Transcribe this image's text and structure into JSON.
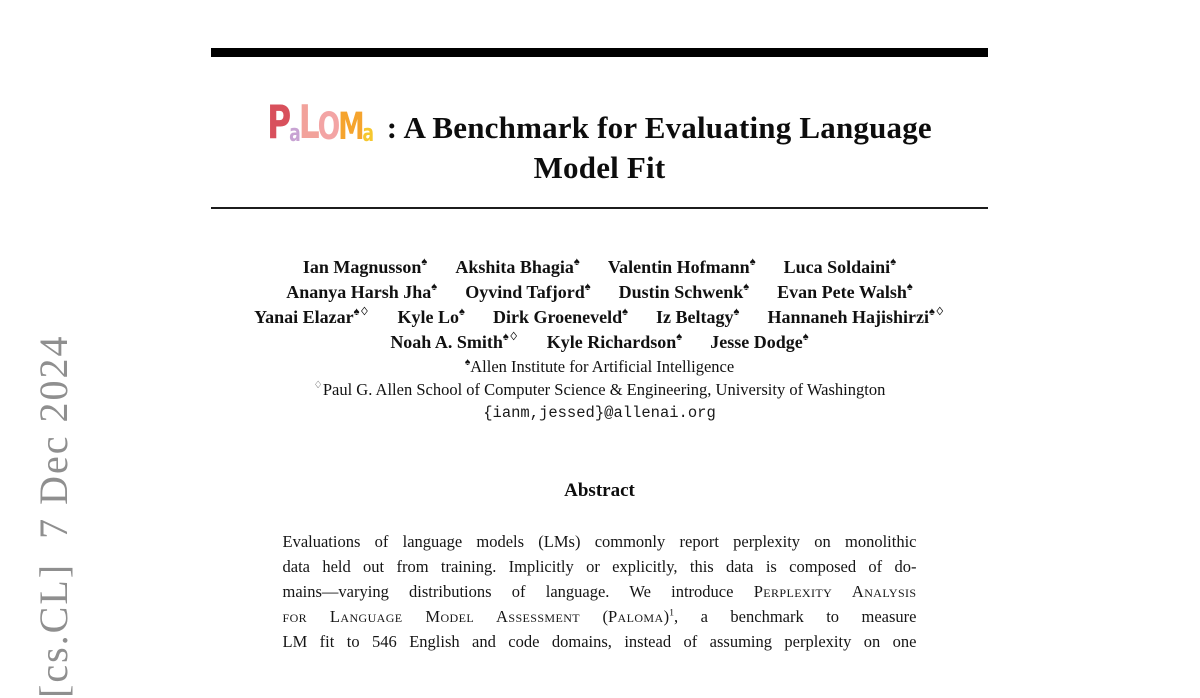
{
  "page": {
    "arxiv_banner": "[cs.CL]  7 Dec 2024",
    "title": {
      "logo_letters": [
        {
          "ch": "P",
          "color": "#d8505c",
          "size": "large"
        },
        {
          "ch": "a",
          "color": "#c8a3d3",
          "size": "small"
        },
        {
          "ch": "L",
          "color": "#f2a29b",
          "size": "large"
        },
        {
          "ch": "O",
          "color": "#f3a4a4",
          "size": "mid"
        },
        {
          "ch": "M",
          "color": "#f5a42e",
          "size": "mid"
        },
        {
          "ch": "a",
          "color": "#f6c72e",
          "size": "small"
        }
      ],
      "line1": ": A Benchmark for Evaluating Language",
      "line2": "Model Fit"
    },
    "authors": {
      "lines": [
        [
          {
            "name": "Ian Magnusson",
            "marks": "♠"
          },
          {
            "name": "Akshita Bhagia",
            "marks": "♠"
          },
          {
            "name": "Valentin Hofmann",
            "marks": "♠"
          },
          {
            "name": "Luca Soldaini",
            "marks": "♠"
          }
        ],
        [
          {
            "name": "Ananya Harsh Jha",
            "marks": "♠"
          },
          {
            "name": "Oyvind Tafjord",
            "marks": "♠"
          },
          {
            "name": "Dustin Schwenk",
            "marks": "♠"
          },
          {
            "name": "Evan Pete Walsh",
            "marks": "♠"
          }
        ],
        [
          {
            "name": "Yanai Elazar",
            "marks": "♠♢"
          },
          {
            "name": "Kyle Lo",
            "marks": "♠"
          },
          {
            "name": "Dirk Groeneveld",
            "marks": "♠"
          },
          {
            "name": "Iz Beltagy",
            "marks": "♠"
          },
          {
            "name": "Hannaneh Hajishirzi",
            "marks": "♠♢"
          }
        ],
        [
          {
            "name": "Noah A. Smith",
            "marks": "♠♢"
          },
          {
            "name": "Kyle Richardson",
            "marks": "♠"
          },
          {
            "name": "Jesse Dodge",
            "marks": "♠"
          }
        ]
      ],
      "affiliations": [
        {
          "mark": "♠",
          "text": "Allen Institute for Artificial Intelligence"
        },
        {
          "mark": "♢",
          "text": "Paul G. Allen School of Computer Science & Engineering, University of Washington"
        }
      ],
      "email": "{ianm,jessed}@allenai.org"
    },
    "abstract": {
      "heading": "Abstract",
      "lines": [
        [
          {
            "t": "Evaluations of language models (LMs) commonly report perplexity on monolithic"
          }
        ],
        [
          {
            "t": "data held out from training. Implicitly or explicitly, this data is composed of do-"
          }
        ],
        [
          {
            "t": "mains—varying distributions of language. We introduce "
          },
          {
            "t": "Perplexity Analysis",
            "sc": true
          }
        ],
        [
          {
            "t": "for Language Model Assessment",
            "sc": true
          },
          {
            "t": " ("
          },
          {
            "t": "Paloma",
            "sc": true
          },
          {
            "t": ")"
          },
          {
            "t": "1",
            "sup": true
          },
          {
            "t": ", a benchmark to measure"
          }
        ],
        [
          {
            "t": "LM fit to 546 English and code domains, instead of assuming perplexity on one"
          }
        ]
      ]
    }
  }
}
